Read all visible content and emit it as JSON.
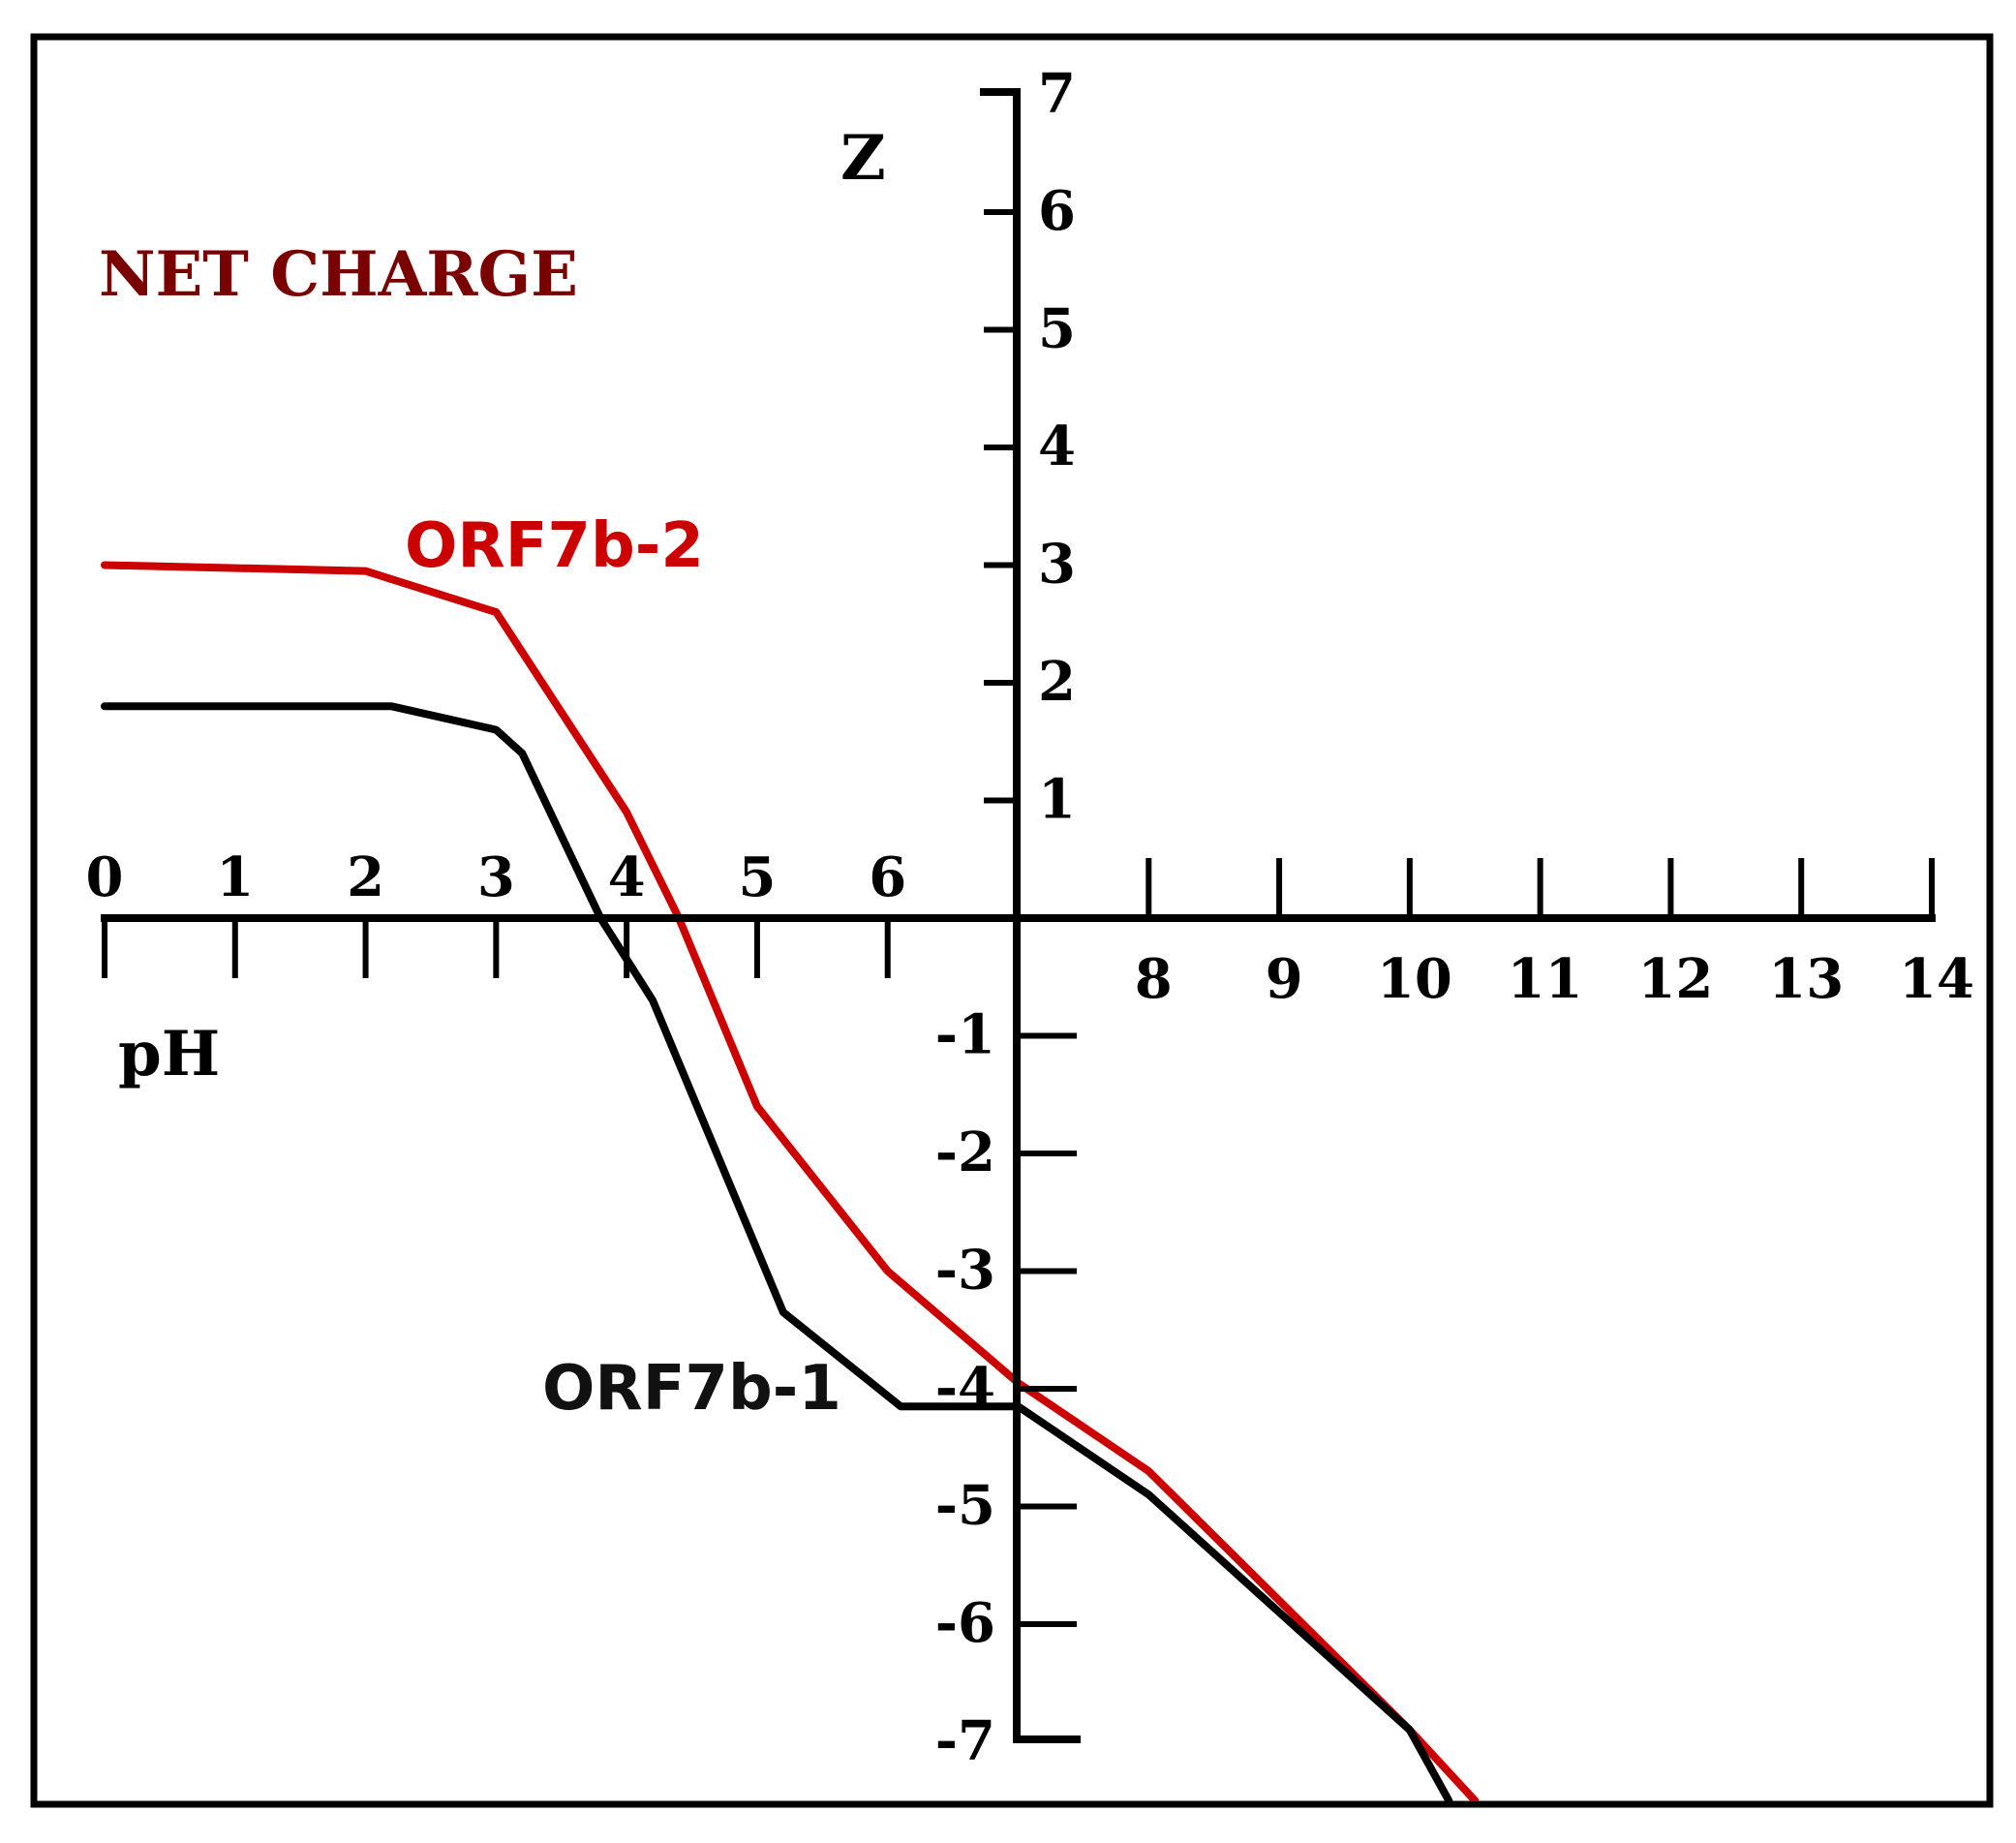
{
  "chart_data": {
    "type": "line",
    "title": "NET CHARGE",
    "xlabel": "pH",
    "ylabel": "Z",
    "xlim": [
      0,
      14
    ],
    "ylim": [
      -7,
      7
    ],
    "x_ticks": [
      "0",
      "1",
      "2",
      "3",
      "4",
      "5",
      "6",
      "",
      "8",
      "9",
      "10",
      "11",
      "12",
      "13",
      "14"
    ],
    "y_ticks_positive": [
      "1",
      "2",
      "3",
      "4",
      "5",
      "6",
      "7"
    ],
    "y_ticks_negative": [
      "-1",
      "-2",
      "-3",
      "-4",
      "-5",
      "-6",
      "-7"
    ],
    "grid": false,
    "series": [
      {
        "name": "ORF7b-2",
        "color": "#cc0000",
        "x": [
          0,
          2,
          3,
          4,
          4.4,
          5,
          6,
          7,
          8,
          9,
          10,
          10.5
        ],
        "y": [
          3.0,
          2.95,
          2.6,
          0.9,
          0.0,
          -1.6,
          -3.0,
          -3.95,
          -4.7,
          -5.8,
          -6.9,
          -7.5
        ]
      },
      {
        "name": "ORF7b-1",
        "color": "#000000",
        "x": [
          0,
          2.2,
          3,
          3.2,
          3.8,
          4.2,
          5.2,
          6.1,
          7,
          8,
          9,
          10,
          10.3
        ],
        "y": [
          1.8,
          1.8,
          1.6,
          1.4,
          0.0,
          -0.7,
          -3.35,
          -4.15,
          -4.15,
          -4.9,
          -5.9,
          -6.9,
          -7.5
        ]
      }
    ]
  }
}
